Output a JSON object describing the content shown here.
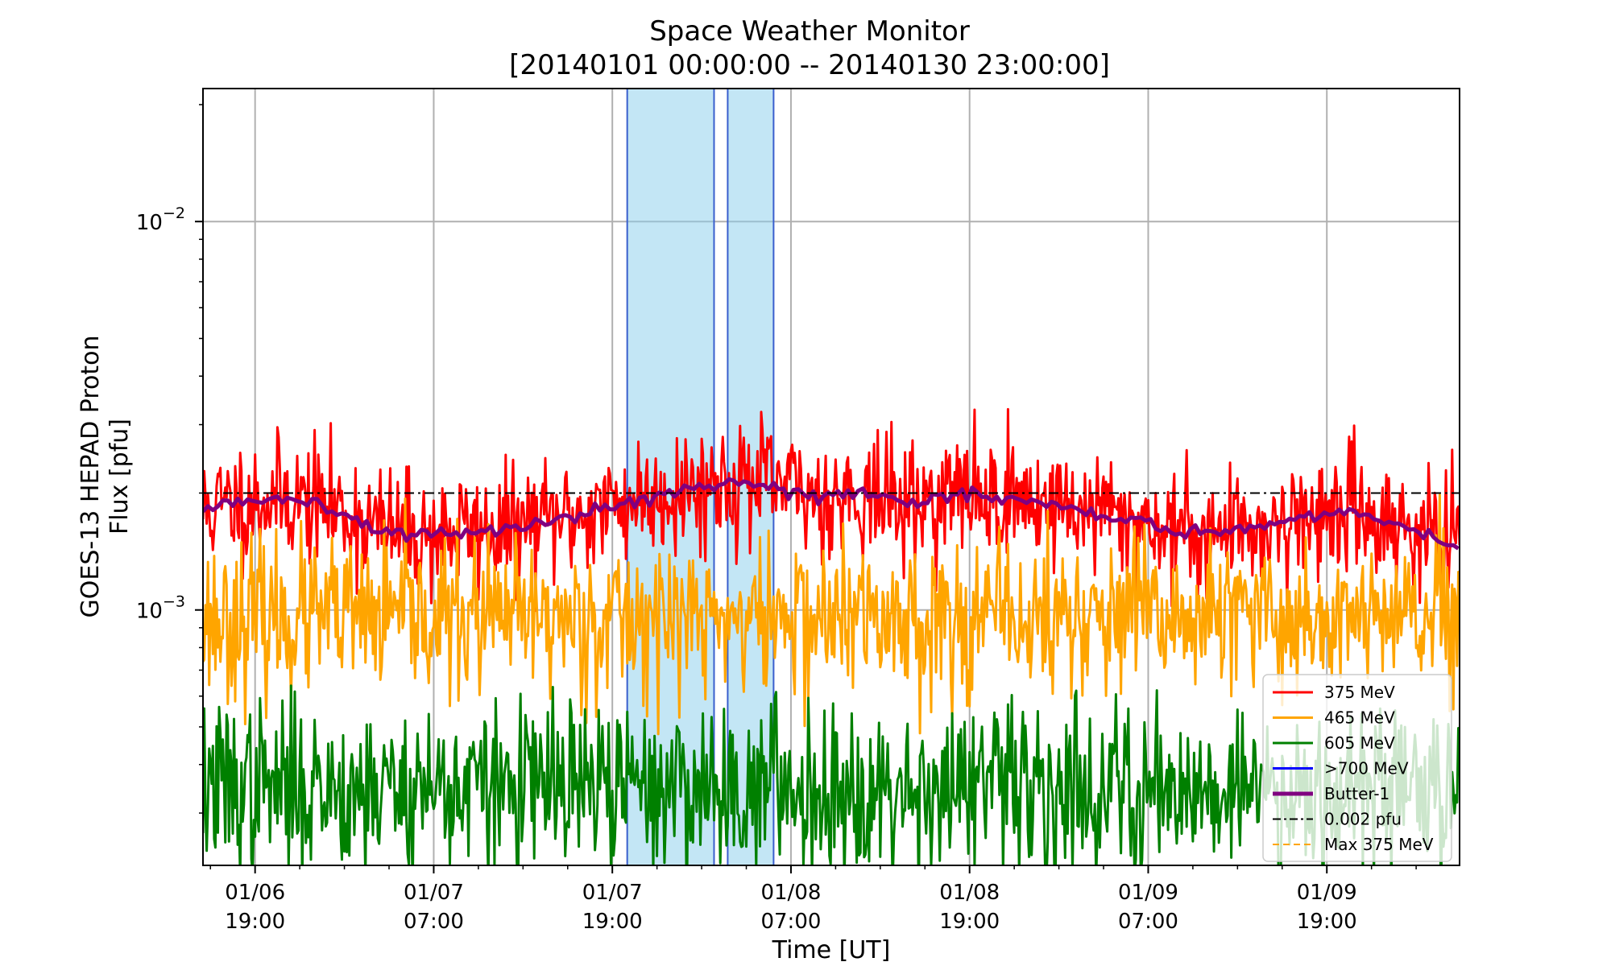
{
  "chart_data": {
    "type": "line",
    "title": "Space Weather Monitor",
    "subtitle": "[20140101 00:00:00 -- 20140130 23:00:00]",
    "xlabel": "Time [UT]",
    "ylabel_line1": "GOES-13 HEPAD Proton",
    "ylabel_line2": "Flux [pfu]",
    "yscale": "log",
    "ylim": [
      0.00022,
      0.022
    ],
    "xlim": [
      "2014-01-06 15:30",
      "2014-01-10 03:55"
    ],
    "grid": true,
    "legend_position": "bottom-right",
    "x_ticks": [
      {
        "time": "2014-01-06 19:00",
        "line1": "01/06",
        "line2": "19:00"
      },
      {
        "time": "2014-01-07 07:00",
        "line1": "01/07",
        "line2": "07:00"
      },
      {
        "time": "2014-01-07 19:00",
        "line1": "01/07",
        "line2": "19:00"
      },
      {
        "time": "2014-01-08 07:00",
        "line1": "01/08",
        "line2": "07:00"
      },
      {
        "time": "2014-01-08 19:00",
        "line1": "01/08",
        "line2": "19:00"
      },
      {
        "time": "2014-01-09 07:00",
        "line1": "01/09",
        "line2": "07:00"
      },
      {
        "time": "2014-01-09 19:00",
        "line1": "01/09",
        "line2": "19:00"
      }
    ],
    "y_major_ticks": [
      {
        "value": 0.01,
        "base": "10",
        "exp": "−2"
      },
      {
        "value": 0.001,
        "base": "10",
        "exp": "−3"
      }
    ],
    "shaded_spans": [
      {
        "start": "2014-01-07 20:00",
        "end": "2014-01-08 01:50"
      },
      {
        "start": "2014-01-08 02:45",
        "end": "2014-01-08 05:50"
      }
    ],
    "threshold": {
      "name": "0.002 pfu",
      "value": 0.002
    },
    "series": [
      {
        "name": "375 MeV",
        "color": "#ff0000",
        "kind": "noisy",
        "mean": 0.00175,
        "spread": 0.33,
        "seed": 11,
        "time_range": [
          "2014-01-06 15:30",
          "2014-01-10 03:55"
        ],
        "step_minutes": 5
      },
      {
        "name": "465 MeV",
        "color": "#ffa500",
        "kind": "noisy",
        "mean": 0.00095,
        "spread": 0.42,
        "seed": 23,
        "time_range": [
          "2014-01-06 15:30",
          "2014-01-10 03:55"
        ],
        "step_minutes": 5
      },
      {
        "name": "605 MeV",
        "color": "#008000",
        "kind": "noisy",
        "mean": 0.00035,
        "spread": 0.45,
        "seed": 37,
        "time_range": [
          "2014-01-06 15:30",
          "2014-01-10 03:55"
        ],
        "step_minutes": 5
      },
      {
        "name": ">700 MeV",
        "color": "#0000ff",
        "kind": "none"
      },
      {
        "name": "Butter-1",
        "color": "#800080",
        "kind": "smooth",
        "points": [
          [
            "2014-01-06 15:30",
            0.0018
          ],
          [
            "2014-01-06 18:00",
            0.0019
          ],
          [
            "2014-01-06 21:00",
            0.00195
          ],
          [
            "2014-01-07 00:00",
            0.00185
          ],
          [
            "2014-01-07 03:00",
            0.00165
          ],
          [
            "2014-01-07 06:00",
            0.00155
          ],
          [
            "2014-01-07 09:00",
            0.0016
          ],
          [
            "2014-01-07 12:00",
            0.0016
          ],
          [
            "2014-01-07 15:00",
            0.0017
          ],
          [
            "2014-01-07 18:00",
            0.0018
          ],
          [
            "2014-01-07 21:00",
            0.00195
          ],
          [
            "2014-01-08 00:00",
            0.00205
          ],
          [
            "2014-01-08 03:00",
            0.00215
          ],
          [
            "2014-01-08 06:00",
            0.0021
          ],
          [
            "2014-01-08 09:00",
            0.00195
          ],
          [
            "2014-01-08 12:00",
            0.002
          ],
          [
            "2014-01-08 15:00",
            0.00185
          ],
          [
            "2014-01-08 18:00",
            0.002
          ],
          [
            "2014-01-08 21:00",
            0.00195
          ],
          [
            "2014-01-09 00:00",
            0.0019
          ],
          [
            "2014-01-09 03:00",
            0.0018
          ],
          [
            "2014-01-09 06:00",
            0.0017
          ],
          [
            "2014-01-09 09:00",
            0.0016
          ],
          [
            "2014-01-09 12:00",
            0.0016
          ],
          [
            "2014-01-09 15:00",
            0.00165
          ],
          [
            "2014-01-09 18:00",
            0.00175
          ],
          [
            "2014-01-09 21:00",
            0.0018
          ],
          [
            "2014-01-10 00:00",
            0.00165
          ],
          [
            "2014-01-10 03:55",
            0.00145
          ]
        ]
      },
      {
        "name": "Max 375 MeV",
        "color": "#ffa500",
        "kind": "none"
      }
    ],
    "legend": [
      {
        "label": "375 MeV",
        "color": "#ff0000",
        "style": "solid"
      },
      {
        "label": "465 MeV",
        "color": "#ffa500",
        "style": "solid"
      },
      {
        "label": "605 MeV",
        "color": "#008000",
        "style": "solid"
      },
      {
        "label": ">700 MeV",
        "color": "#0000ff",
        "style": "solid"
      },
      {
        "label": "Butter-1",
        "color": "#800080",
        "style": "thick"
      },
      {
        "label": "0.002 pfu",
        "color": "#000000",
        "style": "dashdot"
      },
      {
        "label": "Max 375 MeV",
        "color": "#ffa500",
        "style": "dashed"
      }
    ],
    "colors": {
      "span_fill": "#87ceeb",
      "span_edge": "#3a5fcd",
      "grid": "#b0b0b0"
    }
  }
}
